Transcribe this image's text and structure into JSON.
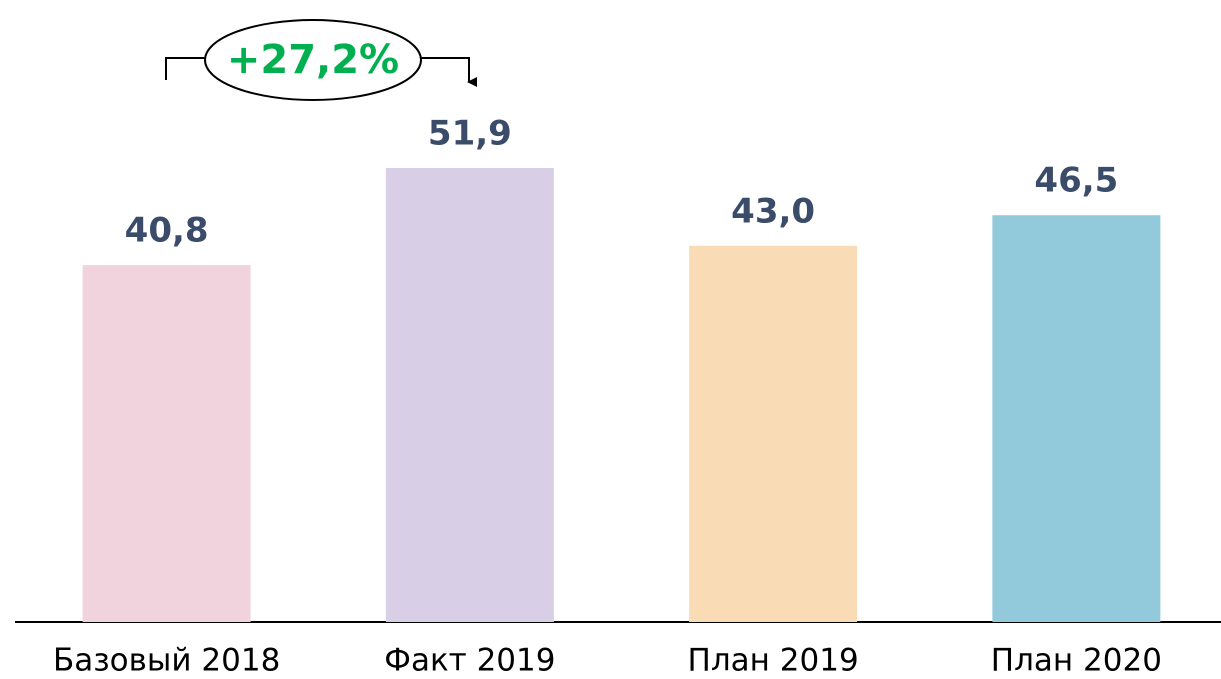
{
  "chart_data": {
    "type": "bar",
    "categories": [
      "Базовый 2018",
      "Факт 2019",
      "План 2019",
      "План 2020"
    ],
    "values": [
      40.8,
      51.9,
      43.0,
      46.5
    ],
    "value_labels": [
      "40,8",
      "51,9",
      "43,0",
      "46,5"
    ],
    "colors": [
      "#f0d3dc",
      "#d8cfe6",
      "#f9dbb6",
      "#93cadb"
    ],
    "annotation": "+27,2%"
  }
}
